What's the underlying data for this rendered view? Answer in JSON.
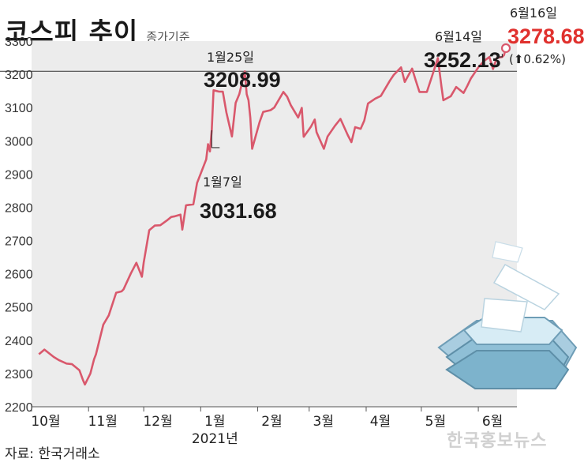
{
  "title": "코스피 추이",
  "subtitle": "종가기준",
  "source": "자료: 한국거래소",
  "watermark": "한국홍보뉴스",
  "colors": {
    "line": "#d9586c",
    "reference": "#333333",
    "plot_bg": "#ececec",
    "highlight": "#e0312e"
  },
  "chart_data": {
    "type": "line",
    "title": "코스피 추이",
    "subtitle": "종가기준",
    "ylim": [
      2200,
      3300
    ],
    "yticks": [
      2200,
      2300,
      2400,
      2500,
      2600,
      2700,
      2800,
      2900,
      3000,
      3100,
      3200,
      3300
    ],
    "xlim": [
      "2020-10-01",
      "2021-06-22"
    ],
    "xticks": [
      {
        "date": "2020-10-01",
        "label": "10월"
      },
      {
        "date": "2020-11-01",
        "label": "11월"
      },
      {
        "date": "2020-12-01",
        "label": "12월"
      },
      {
        "date": "2021-01-01",
        "label": "1월",
        "sublabel": "2021년"
      },
      {
        "date": "2021-02-01",
        "label": "2월"
      },
      {
        "date": "2021-03-01",
        "label": "3월"
      },
      {
        "date": "2021-04-01",
        "label": "4월"
      },
      {
        "date": "2021-05-01",
        "label": "5월"
      },
      {
        "date": "2021-06-01",
        "label": "6월"
      }
    ],
    "reference_line": 3208.99,
    "grid": false,
    "series": [
      {
        "points": [
          [
            "2020-10-05",
            2358
          ],
          [
            "2020-10-08",
            2372
          ],
          [
            "2020-10-13",
            2350
          ],
          [
            "2020-10-16",
            2340
          ],
          [
            "2020-10-20",
            2330
          ],
          [
            "2020-10-23",
            2328
          ],
          [
            "2020-10-27",
            2310
          ],
          [
            "2020-10-29",
            2280
          ],
          [
            "2020-10-30",
            2267
          ],
          [
            "2020-11-02",
            2300
          ],
          [
            "2020-11-04",
            2343
          ],
          [
            "2020-11-05",
            2357
          ],
          [
            "2020-11-09",
            2447
          ],
          [
            "2020-11-12",
            2475
          ],
          [
            "2020-11-16",
            2543
          ],
          [
            "2020-11-19",
            2547
          ],
          [
            "2020-11-20",
            2553
          ],
          [
            "2020-11-24",
            2601
          ],
          [
            "2020-11-27",
            2633
          ],
          [
            "2020-11-30",
            2591
          ],
          [
            "2020-12-01",
            2634
          ],
          [
            "2020-12-04",
            2731
          ],
          [
            "2020-12-07",
            2745
          ],
          [
            "2020-12-10",
            2746
          ],
          [
            "2020-12-14",
            2762
          ],
          [
            "2020-12-16",
            2771
          ],
          [
            "2020-12-18",
            2773
          ],
          [
            "2020-12-21",
            2778
          ],
          [
            "2020-12-22",
            2733
          ],
          [
            "2020-12-24",
            2806
          ],
          [
            "2020-12-28",
            2809
          ],
          [
            "2020-12-30",
            2873
          ],
          [
            "2021-01-04",
            2944
          ],
          [
            "2021-01-05",
            2990
          ],
          [
            "2021-01-06",
            2968
          ],
          [
            "2021-01-07",
            3031.68
          ],
          [
            "2021-01-08",
            3152
          ],
          [
            "2021-01-11",
            3148
          ],
          [
            "2021-01-13",
            3148
          ],
          [
            "2021-01-15",
            3085
          ],
          [
            "2021-01-18",
            3013
          ],
          [
            "2021-01-20",
            3114
          ],
          [
            "2021-01-22",
            3140
          ],
          [
            "2021-01-25",
            3208.99
          ],
          [
            "2021-01-26",
            3140
          ],
          [
            "2021-01-27",
            3122
          ],
          [
            "2021-01-28",
            3069
          ],
          [
            "2021-01-29",
            2976
          ],
          [
            "2021-02-02",
            3056
          ],
          [
            "2021-02-04",
            3087
          ],
          [
            "2021-02-08",
            3092
          ],
          [
            "2021-02-10",
            3100
          ],
          [
            "2021-02-15",
            3147
          ],
          [
            "2021-02-17",
            3133
          ],
          [
            "2021-02-19",
            3107
          ],
          [
            "2021-02-23",
            3070
          ],
          [
            "2021-02-25",
            3099
          ],
          [
            "2021-02-26",
            3012
          ],
          [
            "2021-03-02",
            3043
          ],
          [
            "2021-03-04",
            3064
          ],
          [
            "2021-03-05",
            3026
          ],
          [
            "2021-03-09",
            2976
          ],
          [
            "2021-03-11",
            3013
          ],
          [
            "2021-03-15",
            3045
          ],
          [
            "2021-03-18",
            3066
          ],
          [
            "2021-03-22",
            3017
          ],
          [
            "2021-03-24",
            2996
          ],
          [
            "2021-03-26",
            3041
          ],
          [
            "2021-03-29",
            3036
          ],
          [
            "2021-03-31",
            3061
          ],
          [
            "2021-04-02",
            3112
          ],
          [
            "2021-04-06",
            3127
          ],
          [
            "2021-04-09",
            3135
          ],
          [
            "2021-04-14",
            3182
          ],
          [
            "2021-04-16",
            3198
          ],
          [
            "2021-04-20",
            3221
          ],
          [
            "2021-04-22",
            3177
          ],
          [
            "2021-04-26",
            3217
          ],
          [
            "2021-04-28",
            3181
          ],
          [
            "2021-04-30",
            3147
          ],
          [
            "2021-05-04",
            3147
          ],
          [
            "2021-05-07",
            3197
          ],
          [
            "2021-05-10",
            3249
          ],
          [
            "2021-05-12",
            3161
          ],
          [
            "2021-05-13",
            3122
          ],
          [
            "2021-05-17",
            3134
          ],
          [
            "2021-05-20",
            3162
          ],
          [
            "2021-05-24",
            3144
          ],
          [
            "2021-05-26",
            3165
          ],
          [
            "2021-05-28",
            3188
          ],
          [
            "2021-06-01",
            3221
          ],
          [
            "2021-06-04",
            3240
          ],
          [
            "2021-06-07",
            3252
          ],
          [
            "2021-06-09",
            3216
          ],
          [
            "2021-06-11",
            3249
          ],
          [
            "2021-06-14",
            3252.13
          ],
          [
            "2021-06-15",
            3258
          ],
          [
            "2021-06-16",
            3278.68
          ]
        ]
      }
    ],
    "annotations": [
      {
        "id": "jan7",
        "date": "2021-01-07",
        "label": "1월7일",
        "value_text": "3031.68"
      },
      {
        "id": "jan25",
        "date": "2021-01-25",
        "label": "1월25일",
        "value_text": "3208.99"
      },
      {
        "id": "jun14",
        "date": "2021-06-14",
        "label": "6월14일",
        "value_text": "3252.13"
      },
      {
        "id": "jun16",
        "date": "2021-06-16",
        "label": "6월16일",
        "value_text": "3278.68",
        "change_text": "(⬆0.62%)"
      }
    ]
  }
}
